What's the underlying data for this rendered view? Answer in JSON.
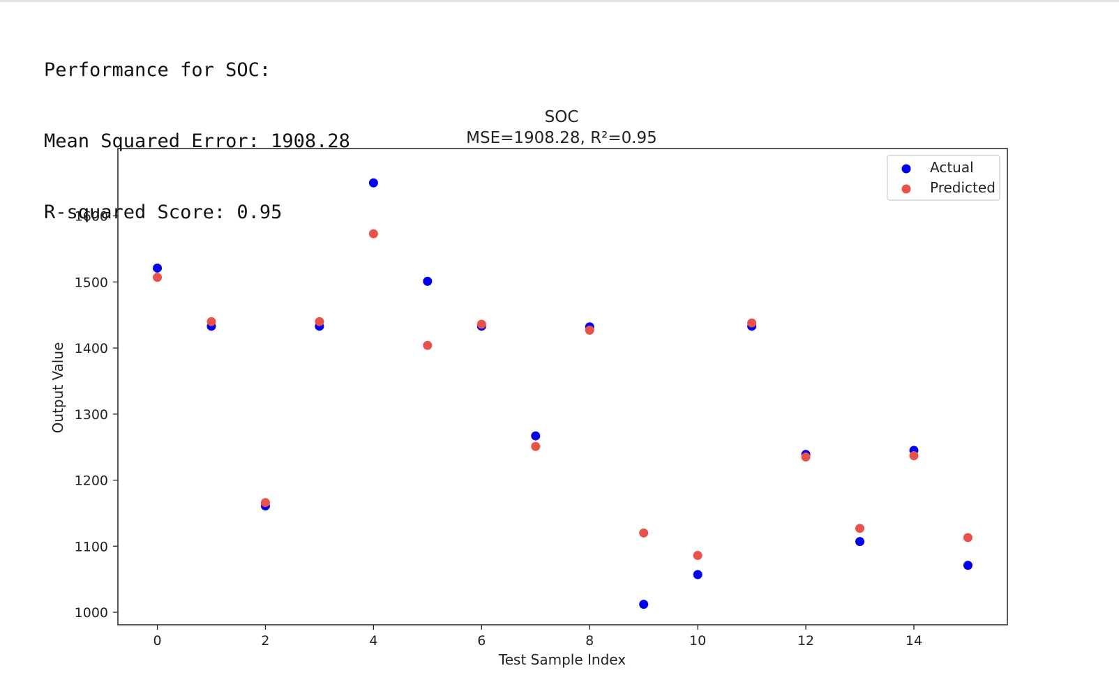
{
  "output": {
    "lines": [
      "Performance for SOC:",
      "Mean Squared Error: 1908.28",
      "R-squared Score: 0.95"
    ]
  },
  "chart_data": {
    "type": "scatter",
    "title": "SOC",
    "subtitle": "MSE=1908.28, R²=0.95",
    "xlabel": "Test Sample Index",
    "ylabel": "Output Value",
    "xlim": [
      -0.73,
      15.73
    ],
    "ylim": [
      981,
      1702
    ],
    "x_ticks": [
      0,
      2,
      4,
      6,
      8,
      10,
      12,
      14
    ],
    "y_ticks": [
      1000,
      1100,
      1200,
      1300,
      1400,
      1500,
      1600
    ],
    "grid": false,
    "legend_position": "top-right",
    "series": [
      {
        "name": "Actual",
        "color": "#0000ee",
        "x": [
          0,
          1,
          2,
          3,
          4,
          5,
          6,
          7,
          8,
          9,
          10,
          11,
          12,
          13,
          14,
          15
        ],
        "values": [
          1521,
          1433,
          1161,
          1433,
          1650,
          1501,
          1433,
          1267,
          1432,
          1012,
          1057,
          1433,
          1239,
          1107,
          1245,
          1071
        ]
      },
      {
        "name": "Predicted",
        "color": "#e8524a",
        "x": [
          0,
          1,
          2,
          3,
          4,
          5,
          6,
          7,
          8,
          9,
          10,
          11,
          12,
          13,
          14,
          15
        ],
        "values": [
          1507,
          1440,
          1166,
          1440,
          1573,
          1404,
          1436,
          1251,
          1427,
          1120,
          1086,
          1438,
          1235,
          1127,
          1237,
          1113
        ]
      }
    ]
  }
}
